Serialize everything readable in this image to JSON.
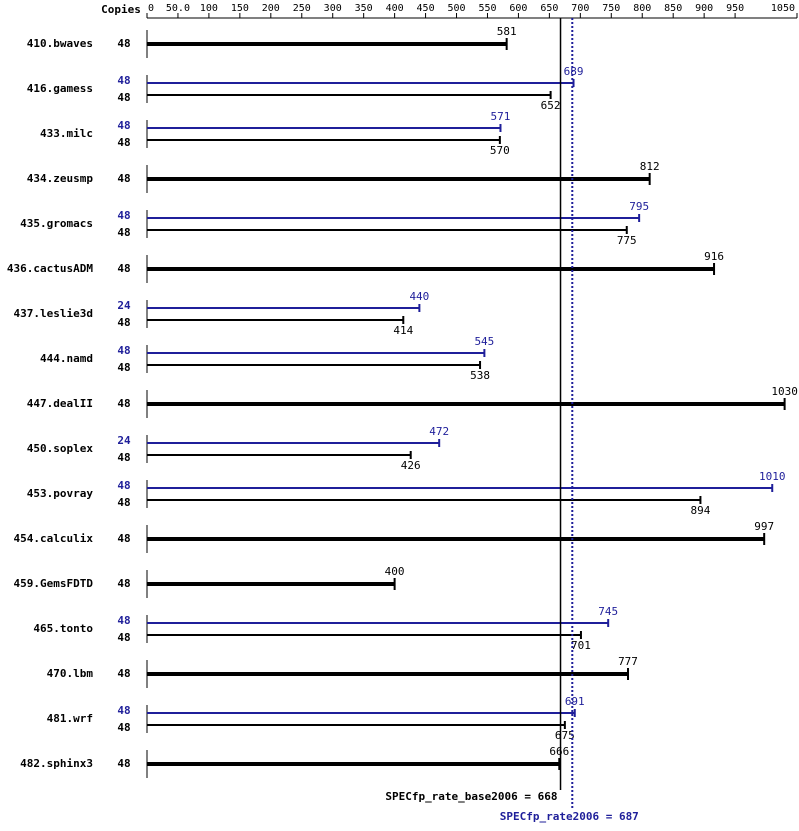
{
  "chart_data": {
    "type": "bar",
    "orientation": "horizontal",
    "copies_header": "Copies",
    "categories": [
      "410.bwaves",
      "416.gamess",
      "433.milc",
      "434.zeusmp",
      "435.gromacs",
      "436.cactusADM",
      "437.leslie3d",
      "444.namd",
      "447.dealII",
      "450.soplex",
      "453.povray",
      "454.calculix",
      "459.GemsFDTD",
      "465.tonto",
      "470.lbm",
      "481.wrf",
      "482.sphinx3"
    ],
    "series": [
      {
        "color": "#000000",
        "copies": [
          48,
          48,
          48,
          48,
          48,
          48,
          48,
          48,
          48,
          48,
          48,
          48,
          48,
          48,
          48,
          48,
          48
        ],
        "values": [
          581,
          652,
          570,
          812,
          775,
          916,
          414,
          538,
          1030,
          426,
          894,
          997,
          400,
          701,
          777,
          675,
          666
        ]
      },
      {
        "color": "#1f1f9a",
        "copies": [
          null,
          48,
          48,
          null,
          48,
          null,
          24,
          48,
          null,
          24,
          48,
          null,
          null,
          48,
          null,
          48,
          null
        ],
        "values": [
          null,
          689,
          571,
          null,
          795,
          null,
          440,
          545,
          null,
          472,
          1010,
          null,
          null,
          745,
          null,
          691,
          null
        ]
      }
    ],
    "xlim": [
      0,
      1050
    ],
    "xticks": [
      0,
      {
        "value": 50,
        "label": "50.0"
      },
      100,
      150,
      200,
      250,
      300,
      350,
      400,
      450,
      500,
      550,
      600,
      650,
      700,
      750,
      800,
      850,
      900,
      950,
      1050
    ],
    "reference_lines": [
      {
        "label": "SPECfp_rate_base2006 = 668",
        "value": 668,
        "color": "#000000",
        "line_style": "solid"
      },
      {
        "label": "SPECfp_rate2006 = 687",
        "value": 687,
        "color": "#1f1f9a",
        "line_style": "dotted"
      }
    ]
  }
}
